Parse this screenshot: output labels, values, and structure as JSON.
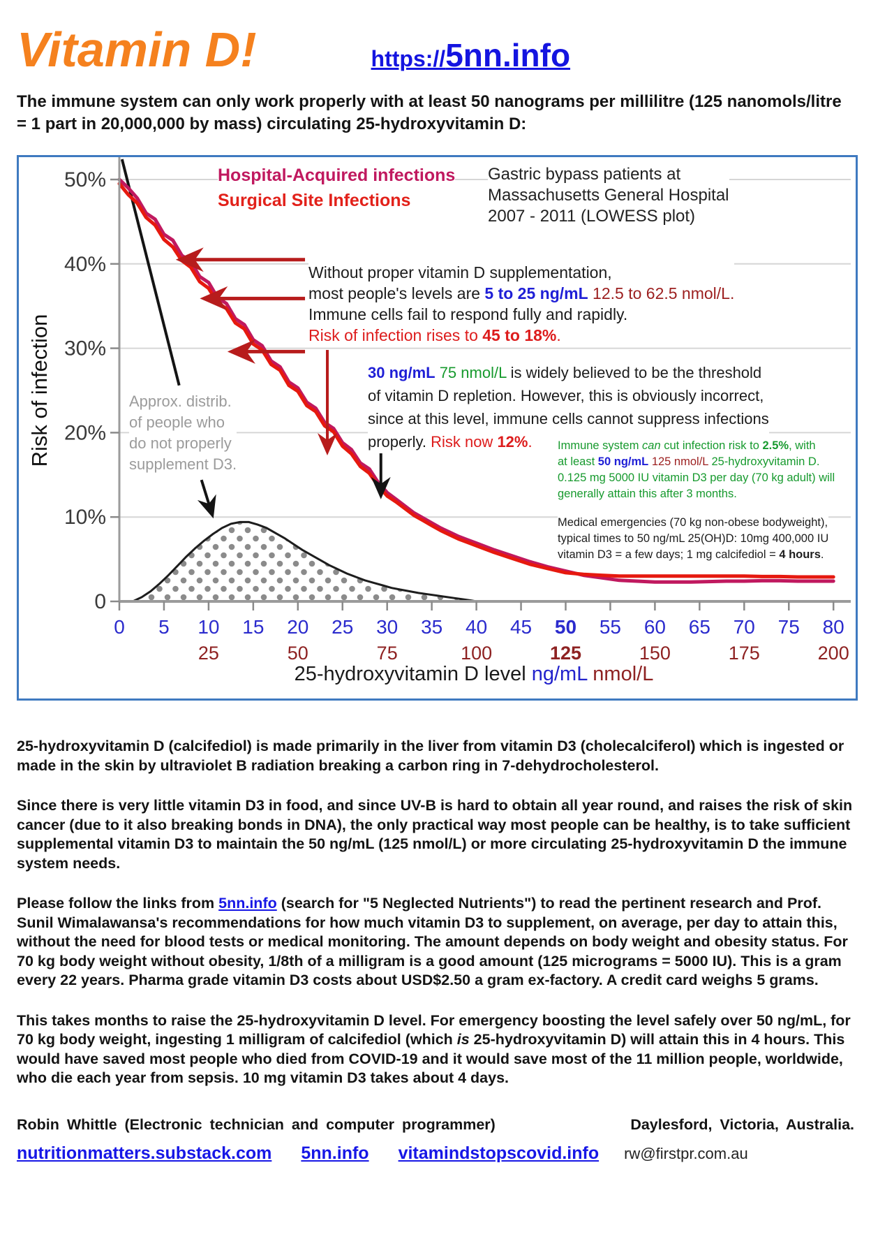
{
  "header": {
    "title": "Vitamin D!",
    "url_prefix": "https://",
    "url_domain": "5nn.info",
    "intro": "The immune system can only work properly with at least 50 nanograms per millilitre (125 nanomols/litre = 1 part in 20,000,000 by mass) circulating 25-hydroxyvitamin D:"
  },
  "colors": {
    "accent_orange": "#f5811e",
    "link_blue": "#1414e0",
    "series_hospital": "#c0195f",
    "series_surgical": "#e6190f",
    "arrow_red": "#b71c1c",
    "value_blue": "#1f1fd6",
    "dark_red_nmol": "#8e2222",
    "green": "#179a2e",
    "gray_label": "#9b9b9b",
    "chart_border": "#3f7ac0"
  },
  "chart": {
    "y_axis_label": "Risk of infection",
    "legend": {
      "series1": "Hospital-Acquired infections",
      "series2": "Surgical Site Infections"
    },
    "source": {
      "l1": "Gastric bypass patients at",
      "l2": "Massachusetts General Hospital",
      "l3": "2007 - 2011 (LOWESS plot)"
    },
    "without": {
      "l1": "Without proper vitamin D supplementation,",
      "l2a": "most people's levels are ",
      "l2b": "5 to 25 ng/mL",
      "l2c": " 12.5 to 62.5 nmol/L.",
      "l3": "Immune cells fail to respond fully and rapidly.",
      "l4a": "Risk of infection rises to ",
      "l4b": "45 to 18%",
      "l4c": "."
    },
    "threshold": {
      "t1a": "30 ng/mL",
      "t1b": " 75 nmol/L",
      "t1c": " is widely believed to be the threshold",
      "t2": "of vitamin D repletion.  However, this is obviously incorrect,",
      "t3": "since at this level, immune cells cannot suppress infections",
      "t4a": "properly.  ",
      "t4b": "Risk now ",
      "t4c": "12%",
      "t4d": "."
    },
    "green_note": {
      "g1a": "Immune system ",
      "g1b": "can",
      "g1c": " cut infection risk to ",
      "g1d": "2.5%",
      "g1e": ",  with",
      "g2a": "at least ",
      "g2b": "50 ng/mL",
      "g2c": " 125 nmol/L",
      "g2d": " 25-hydroxyvitamin D.",
      "g3": "0.125 mg 5000 IU vitamin D3 per day (70 kg adult) will",
      "g4": "generally attain this after 3 months."
    },
    "medical_note": {
      "m1": "Medical emergencies (70 kg non-obese bodyweight),",
      "m2": "typical  times to 50 ng/mL 25(OH)D: 10mg 400,000 IU",
      "m3a": "vitamin D3 = a few days; 1 mg calcifediol = ",
      "m3b": "4 hours",
      "m3c": "."
    },
    "distribution_label": {
      "d1": "Approx. distrib.",
      "d2": "of people who",
      "d3": "do not properly",
      "d4": "supplement D3.",
      "name": "Approx. distrib. of people who do not properly supplement D3."
    },
    "x_title": {
      "t1": "25-hydroxyvitamin D level ",
      "t2": "ng/mL",
      "t3": " nmol/L"
    }
  },
  "chart_data": {
    "type": "line",
    "title": "Gastric bypass patients at Massachusetts General Hospital 2007 - 2011 (LOWESS plot)",
    "xlabel": "25-hydroxyvitamin D level ng/mL nmol/L",
    "ylabel": "Risk of infection",
    "xlim": [
      0,
      80
    ],
    "ylim": [
      0,
      52
    ],
    "grid": true,
    "x_ticks": [
      0,
      5,
      10,
      15,
      20,
      25,
      30,
      35,
      40,
      45,
      50,
      55,
      60,
      65,
      70,
      75,
      80
    ],
    "x_bold_ng": 50,
    "x2_ticks": [
      25,
      50,
      75,
      100,
      125,
      150,
      175,
      200
    ],
    "x_bold_nmol": 125,
    "y_ticks": [
      [
        0,
        "0"
      ],
      [
        10,
        "10%"
      ],
      [
        20,
        "20%"
      ],
      [
        30,
        "30%"
      ],
      [
        40,
        "40%"
      ],
      [
        50,
        "50%"
      ]
    ],
    "x": [
      0,
      1,
      2,
      3,
      4,
      5,
      6,
      7,
      8,
      9,
      10,
      11,
      12,
      13,
      14,
      15,
      16,
      17,
      18,
      19,
      20,
      21,
      22,
      23,
      24,
      25,
      26,
      27,
      28,
      29,
      30,
      31,
      32,
      33,
      34,
      35,
      36,
      37,
      38,
      39,
      40,
      42,
      44,
      46,
      48,
      50,
      52,
      54,
      56,
      58,
      60,
      62,
      64,
      66,
      68,
      70,
      72,
      74,
      76,
      78,
      80
    ],
    "series": [
      {
        "name": "Hospital-Acquired infections",
        "color": "#c0195f",
        "y": [
          50.0,
          49.0,
          47.8,
          46.0,
          45.3,
          43.5,
          42.8,
          41.0,
          40.3,
          38.5,
          37.8,
          36.0,
          35.3,
          33.5,
          32.8,
          31.0,
          30.3,
          28.5,
          27.8,
          26.0,
          25.3,
          23.6,
          22.9,
          21.2,
          20.5,
          18.8,
          18.0,
          16.4,
          15.7,
          14.1,
          12.9,
          12.1,
          11.3,
          10.5,
          9.9,
          9.3,
          8.7,
          8.2,
          7.7,
          7.3,
          6.9,
          6.1,
          5.4,
          4.7,
          4.1,
          3.6,
          3.1,
          2.8,
          2.5,
          2.4,
          2.3,
          2.3,
          2.3,
          2.35,
          2.4,
          2.4,
          2.45,
          2.45,
          2.4,
          2.4,
          2.4
        ]
      },
      {
        "name": "Surgical Site Infections",
        "color": "#e6190f",
        "y": [
          49.5,
          48.2,
          47.2,
          45.5,
          44.6,
          42.9,
          42.0,
          40.4,
          39.6,
          37.9,
          37.1,
          35.4,
          34.7,
          33.0,
          32.3,
          30.5,
          29.8,
          28.1,
          27.4,
          25.6,
          24.9,
          23.2,
          22.5,
          20.8,
          20.1,
          18.4,
          17.5,
          16.0,
          15.2,
          13.7,
          12.5,
          11.8,
          11.0,
          10.2,
          9.6,
          9.0,
          8.4,
          7.9,
          7.4,
          7.0,
          6.6,
          5.8,
          5.1,
          4.4,
          3.9,
          3.4,
          3.2,
          3.1,
          3.0,
          3.0,
          3.0,
          3.0,
          3.0,
          3.0,
          3.0,
          3.0,
          2.95,
          2.95,
          2.9,
          2.9,
          2.9
        ]
      }
    ],
    "distribution": {
      "name": "Approx. distrib. of people who do not properly supplement D3",
      "x": [
        1.5,
        2.5,
        3.5,
        4.5,
        5.5,
        6.5,
        7.5,
        8.5,
        9.5,
        10.5,
        11.5,
        12.5,
        13.5,
        14.5,
        15.5,
        16.5,
        17.5,
        18.5,
        19.5,
        20.5,
        21.5,
        22.5,
        23.5,
        24.5,
        25.5,
        26.5,
        27.5,
        28.5,
        29.5,
        30.5,
        31.5,
        32.5,
        33.5,
        34.5,
        35.5,
        36.5,
        37.5,
        38.5,
        39.5,
        40
      ],
      "y": [
        0,
        0.5,
        1.2,
        2.1,
        3.1,
        4.2,
        5.3,
        6.3,
        7.2,
        8.0,
        8.7,
        9.2,
        9.4,
        9.4,
        9.1,
        8.7,
        8.1,
        7.5,
        6.8,
        6.1,
        5.5,
        4.9,
        4.3,
        3.8,
        3.3,
        2.9,
        2.5,
        2.2,
        1.9,
        1.6,
        1.4,
        1.2,
        1.0,
        0.85,
        0.7,
        0.55,
        0.4,
        0.25,
        0.1,
        0
      ]
    },
    "ref_line": {
      "x1": 0.3,
      "p1": 52.4,
      "x2": 6.7,
      "p2": 25.6
    },
    "arrows": [
      {
        "color": "#b71c1c",
        "w": 5,
        "x1": 20.8,
        "p1": 40.5,
        "x2": 6.9,
        "p2": 40.5
      },
      {
        "color": "#b71c1c",
        "w": 5,
        "x1": 20.8,
        "p1": 35.9,
        "x2": 9.6,
        "p2": 35.9
      },
      {
        "color": "#b71c1c",
        "w": 5,
        "x1": 20.8,
        "p1": 29.6,
        "x2": 12.7,
        "p2": 29.6
      },
      {
        "color": "#b71c1c",
        "w": 4,
        "x1": 23.3,
        "p1": 29.8,
        "x2": 23.3,
        "p2": 17.8
      },
      {
        "color": "#141414",
        "w": 4,
        "x1": 29.3,
        "p1": 18.2,
        "x2": 29.3,
        "p2": 12.6
      },
      {
        "color": "#141414",
        "w": 4,
        "x1": 9.2,
        "p1": 14.4,
        "x2": 10.4,
        "p2": 10.3
      }
    ]
  },
  "body": {
    "p1": "25-hydroxyvitamin D (calcifediol) is made primarily in the liver from vitamin D3 (cholecalciferol) which is ingested or made in the skin by ultraviolet B radiation breaking a carbon ring in 7-dehydrocholesterol.",
    "p2": "Since there is very little vitamin D3 in food, and since UV-B is hard to obtain all year round, and raises the risk of skin cancer (due to it also breaking bonds in DNA), the only practical way most people can be healthy, is to take sufficient supplemental vitamin D3 to maintain the 50 ng/mL (125 nmol/L) or more circulating 25-hydroxyvitamin D the immune system needs.",
    "p3a": "Please follow the links from ",
    "p3_link": "5nn.info",
    "p3b": " (search for \"5 Neglected Nutrients\") to read the pertinent research and Prof. Sunil Wimalawansa's recommendations for how much vitamin D3 to supplement, on average, per day to attain this, without the need for blood tests or medical monitoring.  The amount depends on body weight and obesity status.  For 70 kg body weight without obesity, 1/8th of a milligram is a good amount (125 micrograms = 5000 IU).   This is a gram every 22 years.   Pharma grade vitamin D3 costs about USD$2.50 a gram ex-factory.  A credit card weighs 5 grams.",
    "p4a": "This takes months to raise the 25-hydroxyvitamin D level.  For emergency boosting the level safely over 50 ng/mL, for 70 kg body weight, ingesting 1 milligram of calcifediol (which ",
    "p4b": "is",
    "p4c": " 25-hydroxyvitamin D) will attain this in 4 hours.   This would have saved most people who died from COVID-19 and it would save most of the 11 million people, worldwide, who die each year from sepsis.  10 mg vitamin D3 takes about 4 days."
  },
  "footer": {
    "author": "Robin Whittle (Electronic technician and computer programmer)",
    "location": "Daylesford, Victoria, Australia.",
    "link1": "nutritionmatters.substack.com",
    "link2": "5nn.info",
    "link3": "vitamindstopscovid.info",
    "email": "rw@firstpr.com.au"
  }
}
